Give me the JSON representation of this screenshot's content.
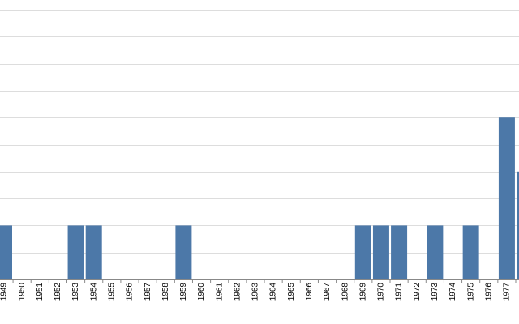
{
  "chart_data": {
    "type": "bar",
    "categories": [
      "1949",
      "1950",
      "1951",
      "1952",
      "1953",
      "1954",
      "1955",
      "1956",
      "1957",
      "1958",
      "1959",
      "1960",
      "1961",
      "1962",
      "1963",
      "1964",
      "1965",
      "1966",
      "1967",
      "1968",
      "1969",
      "1970",
      "1971",
      "1972",
      "1973",
      "1974",
      "1975",
      "1976",
      "1977",
      null
    ],
    "values": [
      2,
      0,
      0,
      0,
      2,
      2,
      0,
      0,
      0,
      0,
      2,
      0,
      0,
      0,
      0,
      0,
      0,
      0,
      0,
      0,
      2,
      2,
      2,
      0,
      2,
      0,
      2,
      0,
      6,
      4
    ],
    "color": "#4c78a8",
    "ylim": [
      0,
      10
    ],
    "yticks": [
      0,
      1,
      2,
      3,
      4,
      5,
      6,
      7,
      8,
      9,
      10
    ],
    "grid": true
  }
}
